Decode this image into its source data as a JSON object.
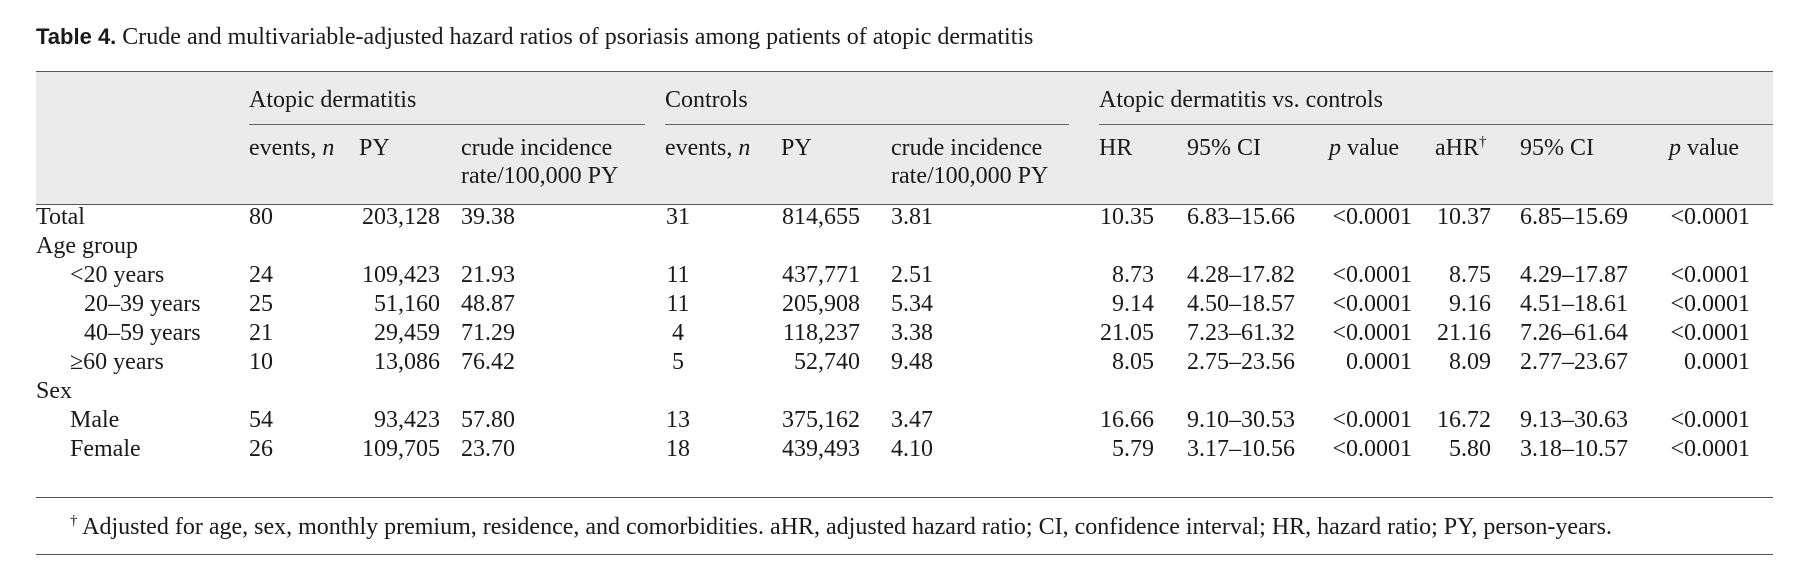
{
  "caption": {
    "label": "Table 4.",
    "text": "Crude and multivariable-adjusted hazard ratios of psoriasis among patients of atopic dermatitis"
  },
  "groups": {
    "ad": "Atopic dermatitis",
    "controls": "Controls",
    "comparison": "Atopic dermatitis vs. controls"
  },
  "columns": {
    "events": "events, ",
    "events_n": "n",
    "py": "PY",
    "rate_line1": "crude incidence",
    "rate_line2": "rate/100,000 PY",
    "hr": "HR",
    "ci": "95% CI",
    "p": "p",
    "p_rest": " value",
    "ahr": "aHR",
    "dagger": "†"
  },
  "rows": [
    {
      "label": "Total",
      "ad_events": "80",
      "ad_py": "203,128",
      "ad_rate": "39.38",
      "c_events": "31",
      "c_py": "814,655",
      "c_rate": "3.81",
      "hr": "10.35",
      "hr_ci": "6.83–15.66",
      "hr_p": "<0.0001",
      "ahr": "10.37",
      "ahr_ci": "6.85–15.69",
      "ahr_p": "<0.0001"
    },
    {
      "label": "Age group"
    },
    {
      "label": "<20 years",
      "ad_events": "24",
      "ad_py": "109,423",
      "ad_rate": "21.93",
      "c_events": "11",
      "c_py": "437,771",
      "c_rate": "2.51",
      "hr": "8.73",
      "hr_ci": "4.28–17.82",
      "hr_p": "<0.0001",
      "ahr": "8.75",
      "ahr_ci": "4.29–17.87",
      "ahr_p": "<0.0001"
    },
    {
      "label": "20–39 years",
      "ad_events": "25",
      "ad_py": "51,160",
      "ad_rate": "48.87",
      "c_events": "11",
      "c_py": "205,908",
      "c_rate": "5.34",
      "hr": "9.14",
      "hr_ci": "4.50–18.57",
      "hr_p": "<0.0001",
      "ahr": "9.16",
      "ahr_ci": "4.51–18.61",
      "ahr_p": "<0.0001"
    },
    {
      "label": "40–59 years",
      "ad_events": "21",
      "ad_py": "29,459",
      "ad_rate": "71.29",
      "c_events": "4",
      "c_py": "118,237",
      "c_rate": "3.38",
      "hr": "21.05",
      "hr_ci": "7.23–61.32",
      "hr_p": "<0.0001",
      "ahr": "21.16",
      "ahr_ci": "7.26–61.64",
      "ahr_p": "<0.0001"
    },
    {
      "label": "≥60 years",
      "ad_events": "10",
      "ad_py": "13,086",
      "ad_rate": "76.42",
      "c_events": "5",
      "c_py": "52,740",
      "c_rate": "9.48",
      "hr": "8.05",
      "hr_ci": "2.75–23.56",
      "hr_p": "0.0001",
      "ahr": "8.09",
      "ahr_ci": "2.77–23.67",
      "ahr_p": "0.0001"
    },
    {
      "label": "Sex"
    },
    {
      "label": "Male",
      "ad_events": "54",
      "ad_py": "93,423",
      "ad_rate": "57.80",
      "c_events": "13",
      "c_py": "375,162",
      "c_rate": "3.47",
      "hr": "16.66",
      "hr_ci": "9.10–30.53",
      "hr_p": "<0.0001",
      "ahr": "16.72",
      "ahr_ci": "9.13–30.63",
      "ahr_p": "<0.0001"
    },
    {
      "label": "Female",
      "ad_events": "26",
      "ad_py": "109,705",
      "ad_rate": "23.70",
      "c_events": "18",
      "c_py": "439,493",
      "c_rate": "4.10",
      "hr": "5.79",
      "hr_ci": "3.17–10.56",
      "hr_p": "<0.0001",
      "ahr": "5.80",
      "ahr_ci": "3.18–10.57",
      "ahr_p": "<0.0001"
    }
  ],
  "footnote": {
    "mark": "†",
    "text": " Adjusted for age, sex, monthly premium, residence, and comorbidities. aHR, adjusted hazard ratio; CI, confidence interval; HR, hazard ratio; PY, person-years."
  }
}
